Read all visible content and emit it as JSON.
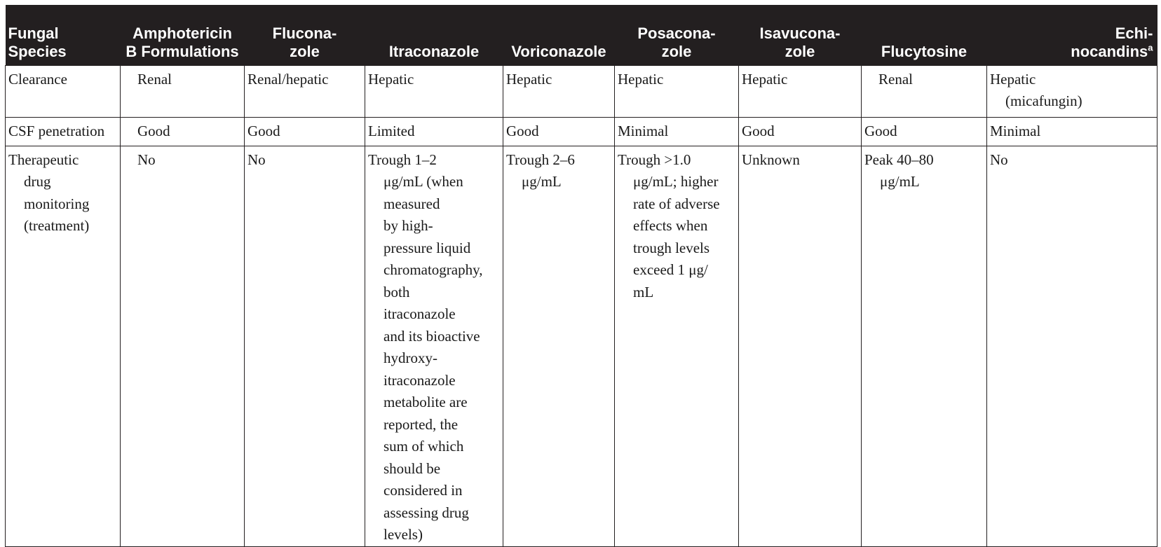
{
  "table": {
    "headers": [
      "Fungal\nSpecies",
      "Amphotericin\nB Formulations",
      "Flucona-\nzole",
      "Itraconazole",
      "Voriconazole",
      "Posacona-\nzole",
      "Isavucona-\nzole",
      "Flucytosine",
      "Echi-\nnocandins"
    ],
    "header_footnote": "a",
    "rows": [
      {
        "label": "Clearance",
        "cells": [
          "Renal",
          "Renal/hepatic",
          "Hepatic",
          "Hepatic",
          "Hepatic",
          "Hepatic",
          "Renal",
          "Hepatic\n(micafungin)"
        ]
      },
      {
        "label": "CSF penetration",
        "cells": [
          "Good",
          "Good",
          "Limited",
          "Good",
          "Minimal",
          "Good",
          "Good",
          "Minimal"
        ]
      },
      {
        "label": "Therapeutic\ndrug\nmonitoring\n(treatment)",
        "cells": [
          "No",
          "No",
          "Trough 1–2\nμg/mL (when\nmeasured\nby high-\npressure liquid\nchromatography,\nboth\nitraconazole\nand its bioactive\nhydroxy-\nitraconazole\nmetabolite are\nreported, the\nsum of which\nshould be\nconsidered in\nassessing drug\nlevels)",
          "Trough 2–6\nμg/mL",
          "Trough >1.0\nμg/mL; higher\nrate of adverse\neffects when\ntrough levels\nexceed 1 μg/\nmL",
          "Unknown",
          "Peak 40–80\nμg/mL",
          "No"
        ]
      }
    ]
  }
}
